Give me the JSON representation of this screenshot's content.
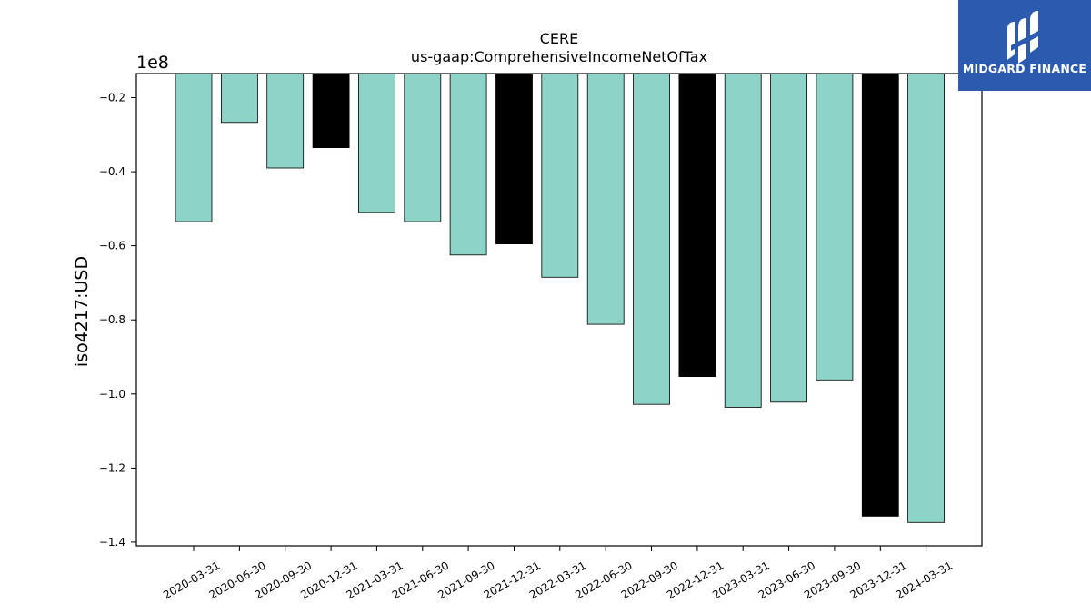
{
  "brand": {
    "name": "MIDGARD FINANCE",
    "color": "#2b5aae"
  },
  "chart_data": {
    "type": "bar",
    "title": "CERE",
    "subtitle": "us-gaap:ComprehensiveIncomeNetOfTax",
    "xlabel": "",
    "ylabel": "iso4217:USD",
    "offset_label": "1e8",
    "scale": 100000000,
    "ylim": [
      -1.41,
      -0.135
    ],
    "yticks": [
      -0.2,
      -0.4,
      -0.6,
      -0.8,
      -1.0,
      -1.2,
      -1.4
    ],
    "ytick_labels": [
      "−0.2",
      "−0.4",
      "−0.6",
      "−0.8",
      "−1.0",
      "−1.2",
      "−1.4"
    ],
    "grid": false,
    "legend": "none",
    "categories": [
      "2020-03-31",
      "2020-06-30",
      "2020-09-30",
      "2020-12-31",
      "2021-03-31",
      "2021-06-30",
      "2021-09-30",
      "2021-12-31",
      "2022-03-31",
      "2022-06-30",
      "2022-09-30",
      "2022-12-31",
      "2023-03-31",
      "2023-06-30",
      "2023-09-30",
      "2023-12-31",
      "2024-03-31"
    ],
    "values": [
      -0.535,
      -0.267,
      -0.39,
      -0.335,
      -0.51,
      -0.535,
      -0.625,
      -0.595,
      -0.685,
      -0.812,
      -1.028,
      -0.953,
      -1.036,
      -1.022,
      -0.962,
      -1.33,
      -1.347
    ],
    "colors": {
      "quarter": "#8dd3c7",
      "year_end": "#000000",
      "edge": "#000000"
    },
    "year_end_flags": [
      false,
      false,
      false,
      true,
      false,
      false,
      false,
      true,
      false,
      false,
      false,
      true,
      false,
      false,
      false,
      true,
      false
    ]
  }
}
